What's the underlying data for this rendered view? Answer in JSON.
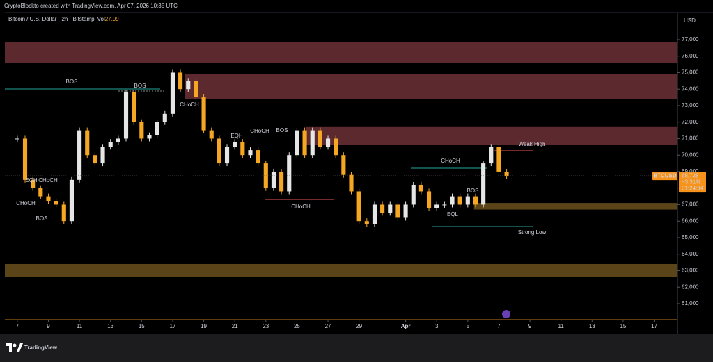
{
  "header": {
    "caption": "CryptoBlockto created with TradingView.com, Apr 07, 2026 10:35 UTC"
  },
  "chart_data": {
    "type": "candlestick",
    "symbol": "Bitcoin / U.S. Dollar · 2h · Bitstamp",
    "volume_label": "Vol",
    "volume": "27.99",
    "currency": "USD",
    "x": [
      0,
      0.5,
      1,
      1.5,
      2,
      2.5,
      3,
      3.5,
      4,
      4.5,
      5,
      5.5,
      6,
      6.5,
      7,
      7.5,
      8,
      8.5,
      9,
      9.5,
      10,
      10.5,
      11,
      11.5,
      12,
      12.5,
      13,
      13.5,
      14,
      14.5,
      15,
      15.5,
      16,
      16.5,
      17,
      17.5,
      18,
      18.5,
      19,
      19.5,
      20,
      20.5,
      21,
      21.5,
      22,
      22.5,
      23,
      23.5,
      24,
      24.5,
      25,
      25.5,
      26,
      26.5,
      27,
      27.5,
      28,
      28.5,
      29,
      29.5,
      30,
      30.5,
      31,
      31.5
    ],
    "close": [
      71000,
      68500,
      68000,
      67500,
      67200,
      67000,
      66000,
      68500,
      71500,
      70000,
      69500,
      70500,
      70800,
      71000,
      73800,
      72000,
      71000,
      71200,
      72000,
      72500,
      75000,
      74000,
      74500,
      73500,
      71500,
      71000,
      69500,
      70500,
      70800,
      70000,
      70300,
      69500,
      68000,
      69000,
      67800,
      70000,
      71500,
      70000,
      71500,
      70500,
      71000,
      70000,
      68800,
      67800,
      66000,
      65800,
      67000,
      66500,
      67000,
      66200,
      67000,
      68200,
      67800,
      66800,
      67000,
      67000,
      67500,
      67000,
      67500,
      67000,
      69500,
      70500,
      69000,
      68738
    ],
    "up_color": "#e6e6e6",
    "down_color": "#f5a623",
    "xlim": [
      -0.8,
      42.5
    ],
    "xticks": [
      {
        "value": 0,
        "label": "7"
      },
      {
        "value": 2,
        "label": "9"
      },
      {
        "value": 4,
        "label": "11"
      },
      {
        "value": 6,
        "label": "13"
      },
      {
        "value": 8,
        "label": "15"
      },
      {
        "value": 10,
        "label": "17"
      },
      {
        "value": 12,
        "label": "19"
      },
      {
        "value": 14,
        "label": "21"
      },
      {
        "value": 16,
        "label": "23"
      },
      {
        "value": 18,
        "label": "25"
      },
      {
        "value": 20,
        "label": "27"
      },
      {
        "value": 22,
        "label": "29"
      },
      {
        "value": 25,
        "label": "Apr"
      },
      {
        "value": 27,
        "label": "3"
      },
      {
        "value": 29,
        "label": "5"
      },
      {
        "value": 31,
        "label": "7"
      },
      {
        "value": 33,
        "label": "9"
      },
      {
        "value": 35,
        "label": "11"
      },
      {
        "value": 37,
        "label": "13"
      },
      {
        "value": 39,
        "label": "15"
      },
      {
        "value": 41,
        "label": "17"
      }
    ],
    "ylim": [
      60030,
      78640
    ],
    "yticks": [
      {
        "value": 61000,
        "label": "61,000"
      },
      {
        "value": 62000,
        "label": "62,000"
      },
      {
        "value": 63000,
        "label": "63,000"
      },
      {
        "value": 64000,
        "label": "64,000"
      },
      {
        "value": 65000,
        "label": "65,000"
      },
      {
        "value": 66000,
        "label": "66,000"
      },
      {
        "value": 67000,
        "label": "67,000"
      },
      {
        "value": 68000,
        "label": "68,000"
      },
      {
        "value": 69000,
        "label": "69,000"
      },
      {
        "value": 70000,
        "label": "70,000"
      },
      {
        "value": 71000,
        "label": "71,000"
      },
      {
        "value": 72000,
        "label": "72,000"
      },
      {
        "value": 73000,
        "label": "73,000"
      },
      {
        "value": 74000,
        "label": "74,000"
      },
      {
        "value": 75000,
        "label": "75,000"
      },
      {
        "value": 76000,
        "label": "76,000"
      },
      {
        "value": 77000,
        "label": "77,000"
      }
    ],
    "zones": [
      {
        "top": 76850,
        "bottom": 75600,
        "color": "#5c2a2e"
      },
      {
        "top": 74900,
        "bottom": 73400,
        "start": 10.8,
        "color": "#5c2a2e"
      },
      {
        "top": 71700,
        "bottom": 70600,
        "start": 18.6,
        "color": "#5c2a2e"
      },
      {
        "top": 67100,
        "bottom": 66700,
        "start": 29.4,
        "color": "#5a4418"
      },
      {
        "top": 63400,
        "bottom": 62600,
        "color": "#5a4418"
      }
    ],
    "annotations": [
      "BOS",
      "BOS",
      "CHoCH",
      "EQH",
      "CHoCH",
      "CHoCH",
      "BOS",
      "EQH",
      "CHoCH",
      "BOS",
      "CHoCH",
      "CHoCH",
      "Weak High",
      "Strong Low",
      "EQL",
      "BOS"
    ],
    "price_tag": {
      "symbol": "BTCUSD",
      "last": {
        "value": 68738,
        "label": "68,738"
      },
      "change": "−3.31%",
      "countdown": "01:24:34"
    }
  },
  "footer": {
    "brand": "TradingView"
  }
}
